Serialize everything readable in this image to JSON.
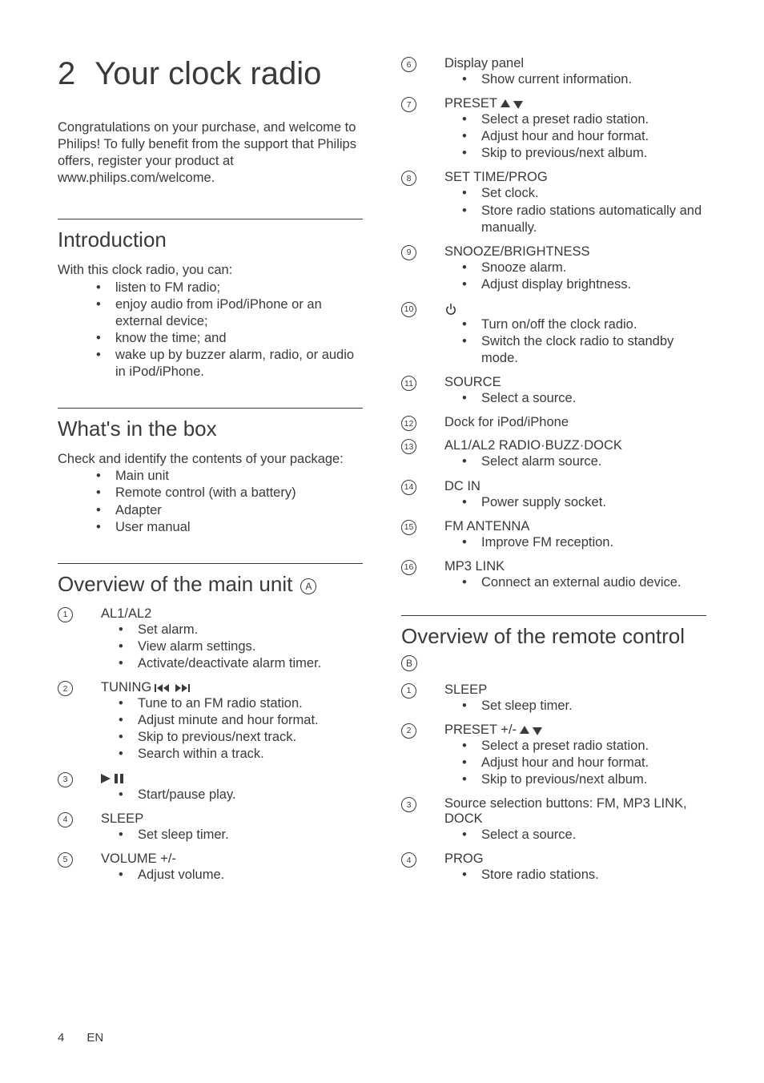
{
  "chapter": {
    "number": "2",
    "title": "Your clock radio"
  },
  "intro_para": "Congratulations on your purchase, and welcome to Philips! To fully benefit from the support that Philips offers, register your product at www.philips.com/welcome.",
  "introduction": {
    "heading": "Introduction",
    "lead": "With this clock radio, you can:",
    "items": [
      "listen to FM radio;",
      "enjoy audio from iPod/iPhone or an external device;",
      "know the time; and",
      "wake up by buzzer alarm, radio, or audio in iPod/iPhone."
    ]
  },
  "whats_in_box": {
    "heading": "What's in the box",
    "lead": "Check and identify the contents of your package:",
    "items": [
      "Main unit",
      "Remote control (with a battery)",
      "Adapter",
      "User manual"
    ]
  },
  "overview_main": {
    "heading": "Overview of the main unit",
    "ref": "A",
    "items": [
      {
        "n": "1",
        "title": "AL1/AL2",
        "bullets": [
          "Set alarm.",
          "View alarm settings.",
          "Activate/deactivate alarm timer."
        ]
      },
      {
        "n": "2",
        "title": "TUNING",
        "icon": "prev-next",
        "bullets": [
          "Tune to an FM radio station.",
          "Adjust minute and hour format.",
          "Skip to previous/next track.",
          "Search within a track."
        ]
      },
      {
        "n": "3",
        "title": "",
        "icon": "play-pause",
        "bullets": [
          "Start/pause play."
        ]
      },
      {
        "n": "4",
        "title": "SLEEP",
        "bullets": [
          "Set sleep timer."
        ]
      },
      {
        "n": "5",
        "title": "VOLUME +/-",
        "bullets": [
          "Adjust volume."
        ]
      },
      {
        "n": "6",
        "title": "Display panel",
        "bullets": [
          "Show current information."
        ]
      },
      {
        "n": "7",
        "title": "PRESET",
        "icon": "up-down",
        "bullets": [
          "Select a preset radio station.",
          "Adjust hour and hour format.",
          "Skip to previous/next album."
        ]
      },
      {
        "n": "8",
        "title": "SET TIME/PROG",
        "bullets": [
          "Set clock.",
          "Store radio stations automatically and manually."
        ]
      },
      {
        "n": "9",
        "title": "SNOOZE/BRIGHTNESS",
        "bullets": [
          "Snooze alarm.",
          "Adjust display brightness."
        ]
      },
      {
        "n": "10",
        "title": "",
        "icon": "power",
        "bullets": [
          "Turn on/off the clock radio.",
          "Switch the clock radio to standby mode."
        ]
      },
      {
        "n": "11",
        "title": "SOURCE",
        "bullets": [
          "Select a source."
        ]
      },
      {
        "n": "12",
        "title": "Dock for iPod/iPhone",
        "bullets": []
      },
      {
        "n": "13",
        "title": "AL1/AL2 RADIO·BUZZ·DOCK",
        "bullets": [
          "Select alarm source."
        ]
      },
      {
        "n": "14",
        "title": "DC IN",
        "bullets": [
          "Power supply socket."
        ]
      },
      {
        "n": "15",
        "title": "FM ANTENNA",
        "bullets": [
          "Improve FM reception."
        ]
      },
      {
        "n": "16",
        "title": "MP3 LINK",
        "bullets": [
          "Connect an external audio device."
        ]
      }
    ]
  },
  "overview_remote": {
    "heading": "Overview of the remote control",
    "ref": "B",
    "items": [
      {
        "n": "1",
        "title": "SLEEP",
        "bullets": [
          "Set sleep timer."
        ]
      },
      {
        "n": "2",
        "title": "PRESET +/-",
        "icon": "up-down",
        "bullets": [
          "Select a preset radio station.",
          "Adjust hour and hour format.",
          "Skip to previous/next album."
        ]
      },
      {
        "n": "3",
        "title": "Source selection buttons: FM, MP3 LINK, DOCK",
        "bullets": [
          "Select a source."
        ]
      },
      {
        "n": "4",
        "title": "PROG",
        "bullets": [
          "Store radio stations."
        ]
      }
    ]
  },
  "footer": {
    "page": "4",
    "lang": "EN"
  }
}
